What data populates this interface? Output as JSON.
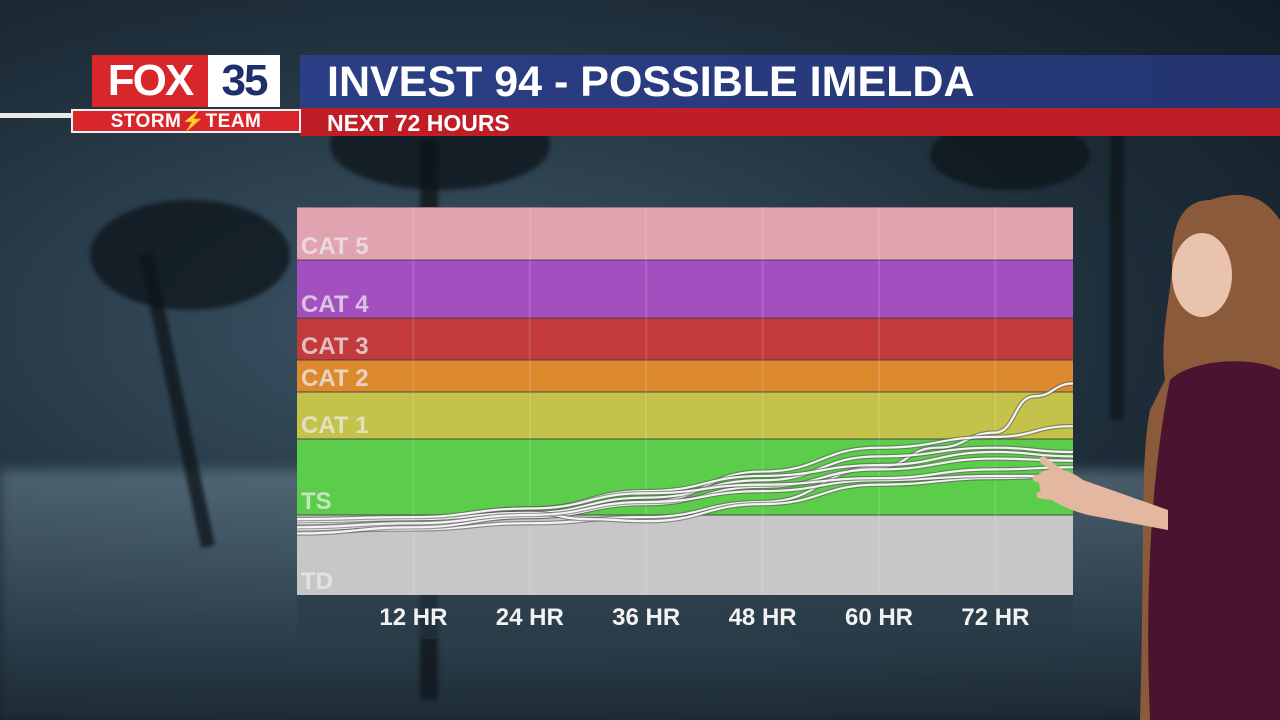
{
  "station": {
    "logo_top_left": "FOX",
    "logo_top_right": "35",
    "logo_bottom": "STORM⚡TEAM"
  },
  "header": {
    "title": "INVEST 94 - POSSIBLE IMELDA",
    "subtitle": "NEXT 72 HOURS"
  },
  "colors": {
    "title_bar": "#2b3f86",
    "subtitle_bar": "#c01e26",
    "fox_red": "#d8262b"
  },
  "chart_data": {
    "type": "line",
    "title": "",
    "xlabel": "",
    "ylabel": "",
    "x_ticks": [
      "12 HR",
      "24 HR",
      "36 HR",
      "48 HR",
      "60 HR",
      "72 HR"
    ],
    "xlim": [
      0,
      80
    ],
    "ylim": [
      0,
      175
    ],
    "intensity_scale": "Saffir-Simpson wind speed (mph)",
    "bands": [
      {
        "label": "TD",
        "min": 0,
        "max": 39,
        "color": "#c7c7c7"
      },
      {
        "label": "TS",
        "min": 39,
        "max": 74,
        "color": "#5ccd4a"
      },
      {
        "label": "CAT 1",
        "min": 74,
        "max": 96,
        "color": "#c4c24a"
      },
      {
        "label": "CAT 2",
        "min": 96,
        "max": 111,
        "color": "#dd8a2f"
      },
      {
        "label": "CAT 3",
        "min": 111,
        "max": 130,
        "color": "#c23a3c"
      },
      {
        "label": "CAT 4",
        "min": 130,
        "max": 157,
        "color": "#a44fbf"
      },
      {
        "label": "CAT 5",
        "min": 157,
        "max": 175,
        "color": "#e2a3b0"
      }
    ],
    "series": [
      {
        "values": [
          [
            0,
            31
          ],
          [
            12,
            32
          ],
          [
            24,
            35
          ],
          [
            36,
            38
          ],
          [
            48,
            45
          ],
          [
            60,
            61
          ],
          [
            66,
            70
          ],
          [
            72,
            77
          ],
          [
            76,
            94
          ],
          [
            80,
            100
          ]
        ]
      },
      {
        "values": [
          [
            0,
            32
          ],
          [
            12,
            34
          ],
          [
            24,
            38
          ],
          [
            36,
            45
          ],
          [
            48,
            59
          ],
          [
            60,
            70
          ],
          [
            72,
            75
          ],
          [
            80,
            80
          ]
        ]
      },
      {
        "values": [
          [
            0,
            34
          ],
          [
            12,
            36
          ],
          [
            24,
            40
          ],
          [
            36,
            47
          ],
          [
            48,
            55
          ],
          [
            60,
            66
          ],
          [
            72,
            70
          ],
          [
            80,
            68
          ]
        ]
      },
      {
        "values": [
          [
            0,
            35
          ],
          [
            12,
            37
          ],
          [
            24,
            42
          ],
          [
            36,
            50
          ],
          [
            48,
            57
          ],
          [
            60,
            62
          ],
          [
            72,
            68
          ],
          [
            80,
            66
          ]
        ]
      },
      {
        "values": [
          [
            0,
            30
          ],
          [
            12,
            33
          ],
          [
            24,
            38
          ],
          [
            36,
            44
          ],
          [
            48,
            52
          ],
          [
            60,
            60
          ],
          [
            72,
            65
          ],
          [
            80,
            64
          ]
        ]
      },
      {
        "values": [
          [
            0,
            36
          ],
          [
            12,
            37
          ],
          [
            24,
            40
          ],
          [
            30,
            37
          ],
          [
            36,
            36
          ],
          [
            48,
            44
          ],
          [
            60,
            53
          ],
          [
            72,
            56
          ],
          [
            80,
            57
          ]
        ]
      },
      {
        "values": [
          [
            0,
            33
          ],
          [
            12,
            35
          ],
          [
            24,
            39
          ],
          [
            36,
            45
          ],
          [
            48,
            50
          ],
          [
            60,
            55
          ],
          [
            72,
            57
          ],
          [
            80,
            57
          ]
        ]
      },
      {
        "values": [
          [
            0,
            37
          ],
          [
            12,
            38
          ],
          [
            24,
            42
          ],
          [
            36,
            49
          ],
          [
            48,
            53
          ],
          [
            60,
            56
          ],
          [
            72,
            60
          ],
          [
            80,
            61
          ]
        ]
      }
    ],
    "grid": true
  }
}
